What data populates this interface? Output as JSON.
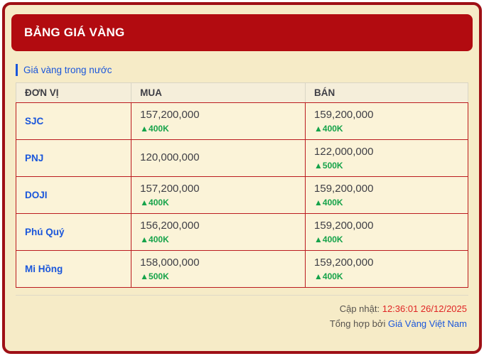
{
  "page": {
    "title": "BẢNG GIÁ VÀNG"
  },
  "section": {
    "title": "Giá vàng trong nước"
  },
  "table": {
    "columns": [
      "ĐƠN VỊ",
      "MUA",
      "BÁN"
    ],
    "rows": [
      {
        "unit": "SJC",
        "buy": {
          "price": "157,200,000",
          "change": "▲400K"
        },
        "sell": {
          "price": "159,200,000",
          "change": "▲400K"
        }
      },
      {
        "unit": "PNJ",
        "buy": {
          "price": "120,000,000",
          "change": ""
        },
        "sell": {
          "price": "122,000,000",
          "change": "▲500K"
        }
      },
      {
        "unit": "DOJI",
        "buy": {
          "price": "157,200,000",
          "change": "▲400K"
        },
        "sell": {
          "price": "159,200,000",
          "change": "▲400K"
        }
      },
      {
        "unit": "Phú Quý",
        "buy": {
          "price": "156,200,000",
          "change": "▲400K"
        },
        "sell": {
          "price": "159,200,000",
          "change": "▲400K"
        }
      },
      {
        "unit": "Mi Hồng",
        "buy": {
          "price": "158,000,000",
          "change": "▲500K"
        },
        "sell": {
          "price": "159,200,000",
          "change": "▲400K"
        }
      }
    ]
  },
  "footer": {
    "updated_label": "Cập nhật:",
    "updated_value": "12:36:01 26/12/2025",
    "source_label": "Tổng hợp bởi",
    "source_link": "Giá Vàng Việt Nam"
  },
  "colors": {
    "header_bg": "#B20B10",
    "card_border": "#9E1016",
    "card_bg": "#F6EBC7",
    "row_bg": "#FBF3D8",
    "table_header_bg": "#F5EEDA",
    "table_border_red": "#BB1B1F",
    "accent_blue": "#1A56DB",
    "change_green": "#16A34A",
    "time_red": "#E02424"
  }
}
